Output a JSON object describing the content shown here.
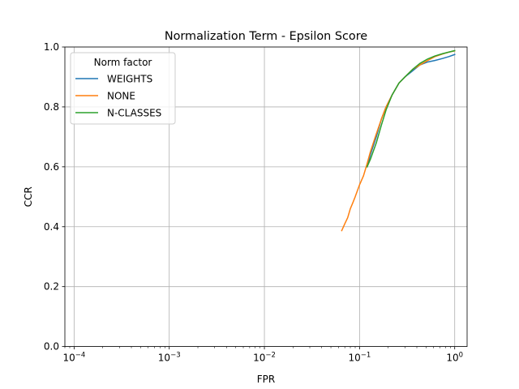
{
  "chart_data": {
    "type": "line",
    "title": "Normalization Term - Epsilon Score",
    "xlabel": "FPR",
    "ylabel": "CCR",
    "xscale": "log",
    "xlim": [
      8e-05,
      1.35
    ],
    "ylim": [
      0.0,
      1.0
    ],
    "x_ticks": [
      {
        "value": 0.0001,
        "base": "10",
        "exp": "−4"
      },
      {
        "value": 0.001,
        "base": "10",
        "exp": "−3"
      },
      {
        "value": 0.01,
        "base": "10",
        "exp": "−2"
      },
      {
        "value": 0.1,
        "base": "10",
        "exp": "−1"
      },
      {
        "value": 1,
        "base": "10",
        "exp": "0"
      }
    ],
    "y_ticks": [
      {
        "value": 0.0,
        "label": "0.0"
      },
      {
        "value": 0.2,
        "label": "0.2"
      },
      {
        "value": 0.4,
        "label": "0.4"
      },
      {
        "value": 0.6,
        "label": "0.6"
      },
      {
        "value": 0.8,
        "label": "0.8"
      },
      {
        "value": 1.0,
        "label": "1.0"
      }
    ],
    "grid": true,
    "legend": {
      "title": "Norm factor",
      "position": "upper-left"
    },
    "series": [
      {
        "name": "WEIGHTS",
        "color": "#1f77b4",
        "x": [
          0.12,
          0.13,
          0.15,
          0.17,
          0.19,
          0.22,
          0.26,
          0.3,
          0.36,
          0.43,
          0.52,
          0.62,
          0.75,
          0.87,
          1.0
        ],
        "y": [
          0.6,
          0.64,
          0.7,
          0.76,
          0.8,
          0.84,
          0.88,
          0.9,
          0.92,
          0.94,
          0.95,
          0.955,
          0.962,
          0.968,
          0.975
        ]
      },
      {
        "name": "NONE",
        "color": "#ff7f0e",
        "x": [
          0.065,
          0.07,
          0.075,
          0.08,
          0.085,
          0.09,
          0.1,
          0.11,
          0.12,
          0.13,
          0.15,
          0.17,
          0.19,
          0.22,
          0.26,
          0.3,
          0.36,
          0.43,
          0.52,
          0.62,
          0.75,
          0.87,
          1.0
        ],
        "y": [
          0.387,
          0.41,
          0.43,
          0.46,
          0.48,
          0.5,
          0.54,
          0.57,
          0.61,
          0.65,
          0.71,
          0.76,
          0.8,
          0.84,
          0.88,
          0.9,
          0.925,
          0.94,
          0.955,
          0.968,
          0.977,
          0.983,
          0.987
        ]
      },
      {
        "name": "N-CLASSES",
        "color": "#2ca02c",
        "x": [
          0.12,
          0.13,
          0.15,
          0.17,
          0.19,
          0.22,
          0.26,
          0.3,
          0.36,
          0.43,
          0.52,
          0.62,
          0.75,
          0.87,
          1.0
        ],
        "y": [
          0.6,
          0.625,
          0.68,
          0.74,
          0.79,
          0.84,
          0.88,
          0.9,
          0.925,
          0.945,
          0.96,
          0.97,
          0.978,
          0.983,
          0.988
        ]
      }
    ]
  }
}
